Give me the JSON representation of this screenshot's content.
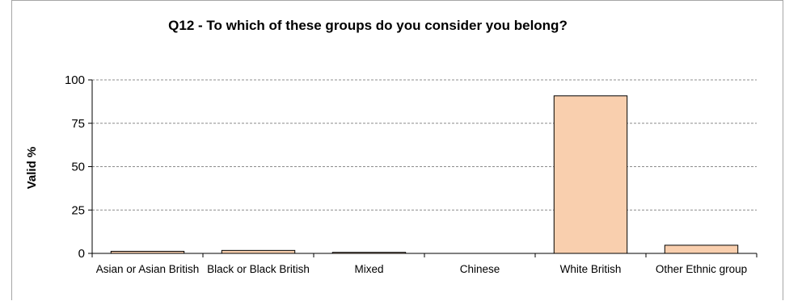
{
  "colors": {
    "bar_fill": "#f9cfae",
    "bar_stroke": "#000000",
    "grid": "#8c8c8c",
    "axis": "#000000"
  },
  "chart_data": {
    "type": "bar",
    "title": "Q12 - To which of these groups do you consider you belong?",
    "xlabel": "",
    "ylabel": "Valid %",
    "ylim": [
      0,
      100
    ],
    "yticks": [
      0,
      25,
      50,
      75,
      100
    ],
    "grid": true,
    "grid_style": "dashed",
    "categories": [
      "Asian or Asian British",
      "Black or Black British",
      "Mixed",
      "Chinese",
      "White British",
      "Other Ethnic group"
    ],
    "values": [
      1.2,
      1.7,
      0.6,
      0,
      90.8,
      4.7
    ]
  }
}
